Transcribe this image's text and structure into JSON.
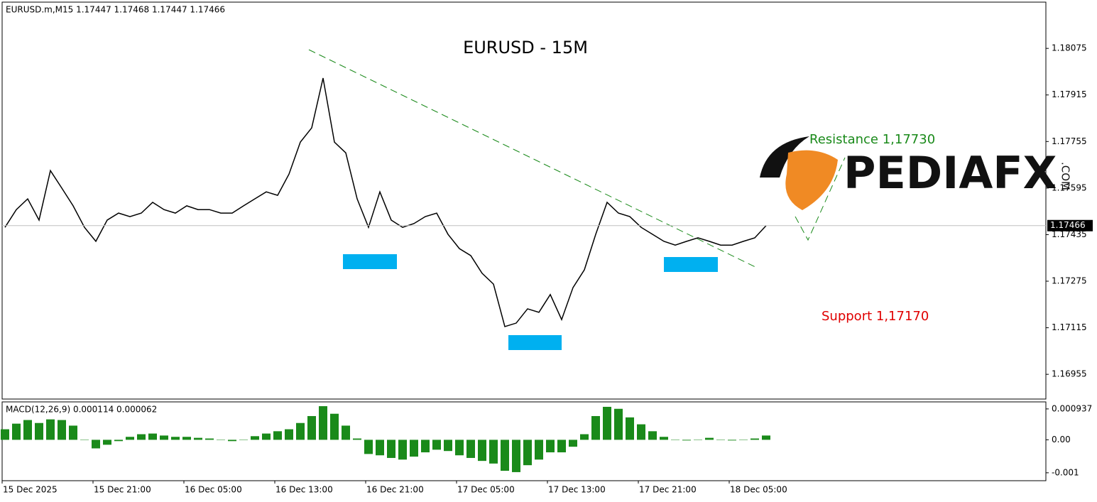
{
  "chart_data": [
    {
      "type": "line",
      "title": "EURUSD - 15M",
      "subtitle": "EURUSD.m,M15  1.17447 1.17468 1.17447 1.17466",
      "categories": [
        "15 Dec 2025",
        null,
        null,
        null,
        null,
        null,
        null,
        null,
        "15 Dec 21:00",
        null,
        null,
        null,
        null,
        null,
        null,
        null,
        "16 Dec 05:00",
        null,
        null,
        null,
        null,
        null,
        null,
        null,
        "16 Dec 13:00",
        null,
        null,
        null,
        null,
        null,
        null,
        null,
        "16 Dec 21:00",
        null,
        null,
        null,
        null,
        null,
        null,
        null,
        "17 Dec 05:00",
        null,
        null,
        null,
        null,
        null,
        null,
        null,
        "17 Dec 13:00",
        null,
        null,
        null,
        null,
        null,
        null,
        null,
        "17 Dec 21:00",
        null,
        null,
        null,
        null,
        null,
        null,
        null,
        "18 Dec 05:00",
        null,
        null,
        null
      ],
      "series": [
        {
          "name": "EURUSD.m",
          "color": "#000000",
          "values": [
            1.1746,
            1.17521,
            1.17558,
            1.17485,
            1.17655,
            1.17595,
            1.17534,
            1.1746,
            1.17412,
            1.17485,
            1.17509,
            1.17497,
            1.17509,
            1.17546,
            1.17521,
            1.17509,
            1.17534,
            1.17521,
            1.17521,
            1.17509,
            1.17509,
            1.17534,
            1.17558,
            1.17582,
            1.1757,
            1.17643,
            1.17753,
            1.17802,
            1.17973,
            1.17753,
            1.17716,
            1.17558,
            1.1746,
            1.17582,
            1.17485,
            1.1746,
            1.17473,
            1.17497,
            1.17509,
            1.17436,
            1.17387,
            1.17363,
            1.17302,
            1.17265,
            1.17119,
            1.17131,
            1.1718,
            1.17168,
            1.17229,
            1.17143,
            1.17253,
            1.17314,
            1.17436,
            1.17546,
            1.17509,
            1.17497,
            1.1746,
            1.17436,
            1.17412,
            1.17399,
            1.17412,
            1.17424,
            1.17412,
            1.17399,
            1.17399,
            1.17412,
            1.17424,
            1.17466
          ]
        }
      ],
      "last_price": 1.17466,
      "ylim": [
        1.1687,
        1.18234
      ],
      "yticks": [
        1.18075,
        1.17915,
        1.17755,
        1.17595,
        1.17435,
        1.17275,
        1.17115,
        1.16955
      ],
      "annotations": [
        {
          "text": "Resistance 1,17730",
          "color": "#1a8a1a"
        },
        {
          "text": "Support 1,17170",
          "color": "#e00000"
        }
      ]
    },
    {
      "type": "bar",
      "title": "MACD(12,26,9) 0.000114 0.000062",
      "color": "#1a8a1a",
      "values": [
        0.00032,
        0.00049,
        0.0006,
        0.00051,
        0.00062,
        0.0006,
        0.00043,
        0,
        -0.00026,
        -0.00015,
        -4e-05,
        9e-05,
        0.00017,
        0.00019,
        0.00013,
        9e-05,
        9e-05,
        6e-05,
        4e-05,
        0,
        -4e-05,
        0,
        0.00011,
        0.00019,
        0.00026,
        0.00032,
        0.00051,
        0.00072,
        0.00102,
        0.00079,
        0.00043,
        4e-05,
        -0.00043,
        -0.00047,
        -0.00055,
        -0.0006,
        -0.00051,
        -0.00038,
        -0.0003,
        -0.00034,
        -0.00047,
        -0.00055,
        -0.00064,
        -0.00072,
        -0.00094,
        -0.00098,
        -0.00077,
        -0.0006,
        -0.00038,
        -0.00038,
        -0.00021,
        0.00017,
        0.00072,
        0.001,
        0.00094,
        0.00068,
        0.00047,
        0.00026,
        9e-05,
        0,
        -2e-05,
        0,
        6e-05,
        0,
        -2e-05,
        0,
        4e-05,
        0.00013
      ],
      "ylim": [
        -0.00124,
        0.00115
      ],
      "yticks": [
        0.000937,
        {
          "value": 0,
          "label": "0.00"
        },
        -0.001
      ]
    }
  ],
  "logo": {
    "text": "PEDIAFX",
    "suffix": ".COM"
  }
}
